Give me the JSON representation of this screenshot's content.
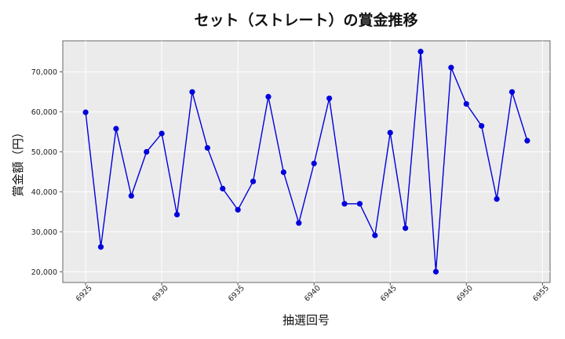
{
  "chart_data": {
    "type": "line",
    "title": "セット（ストレート）の賞金推移",
    "xlabel": "抽選回号",
    "ylabel": "賞金額（円）",
    "x": [
      6925,
      6926,
      6927,
      6928,
      6929,
      6930,
      6931,
      6932,
      6933,
      6934,
      6935,
      6936,
      6937,
      6938,
      6939,
      6940,
      6941,
      6942,
      6943,
      6944,
      6945,
      6946,
      6947,
      6948,
      6949,
      6950,
      6951,
      6952,
      6953,
      6954
    ],
    "series": [
      {
        "values": [
          59900,
          26200,
          55800,
          39000,
          50000,
          54600,
          34300,
          65000,
          51000,
          40800,
          35500,
          42600,
          63800,
          44900,
          32200,
          47100,
          63400,
          37000,
          37000,
          29100,
          54800,
          30900,
          75100,
          20000,
          71100,
          62000,
          56500,
          38200,
          65000,
          52800
        ],
        "color": "#0000dd"
      }
    ],
    "xlim": [
      6923.5,
      6955.5
    ],
    "ylim": [
      17300,
      77800
    ],
    "xticks": [
      "6925",
      "6930",
      "6935",
      "6940",
      "6945",
      "6950",
      "6955"
    ],
    "yticks": [
      "20,000",
      "30,000",
      "40,000",
      "50,000",
      "60,000",
      "70,000"
    ],
    "grid": true,
    "background": "#ebebeb"
  }
}
